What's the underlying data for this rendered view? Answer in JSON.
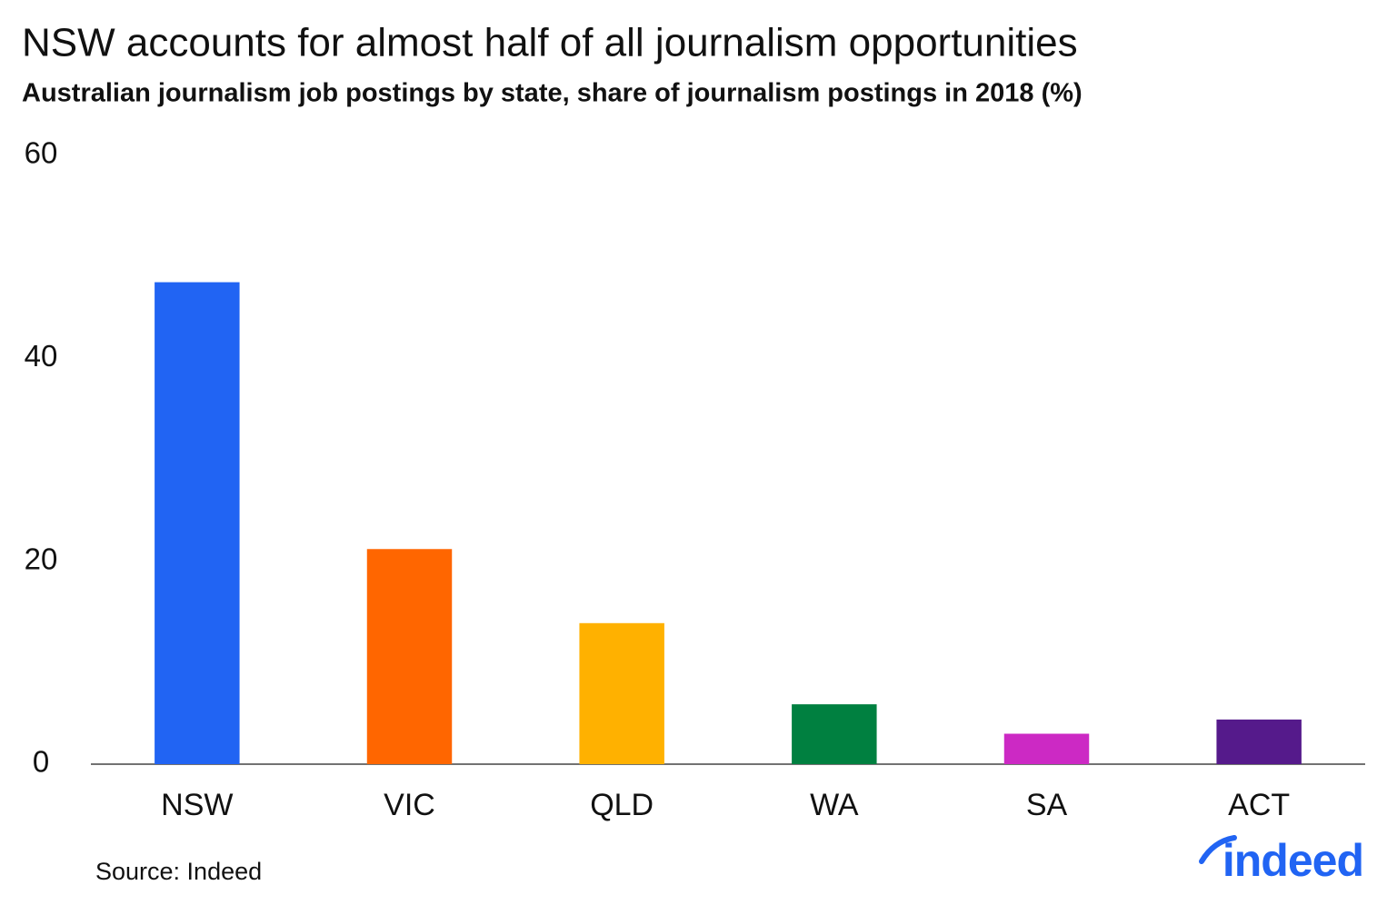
{
  "chart_data": {
    "type": "bar",
    "title": "NSW accounts for almost half of all journalism opportunities",
    "subtitle": "Australian journalism job postings by state, share of journalism postings in 2018 (%)",
    "categories": [
      "NSW",
      "VIC",
      "QLD",
      "WA",
      "SA",
      "ACT"
    ],
    "values": [
      47.5,
      21.2,
      13.9,
      5.9,
      3.0,
      4.4
    ],
    "colors": [
      "#2164f3",
      "#ff6600",
      "#ffb100",
      "#008040",
      "#cc29c4",
      "#551a8b"
    ],
    "ylim": [
      0,
      60
    ],
    "yticks": [
      0,
      20,
      40,
      60
    ],
    "grid": false,
    "source": "Source: Indeed",
    "logo": "indeed"
  }
}
